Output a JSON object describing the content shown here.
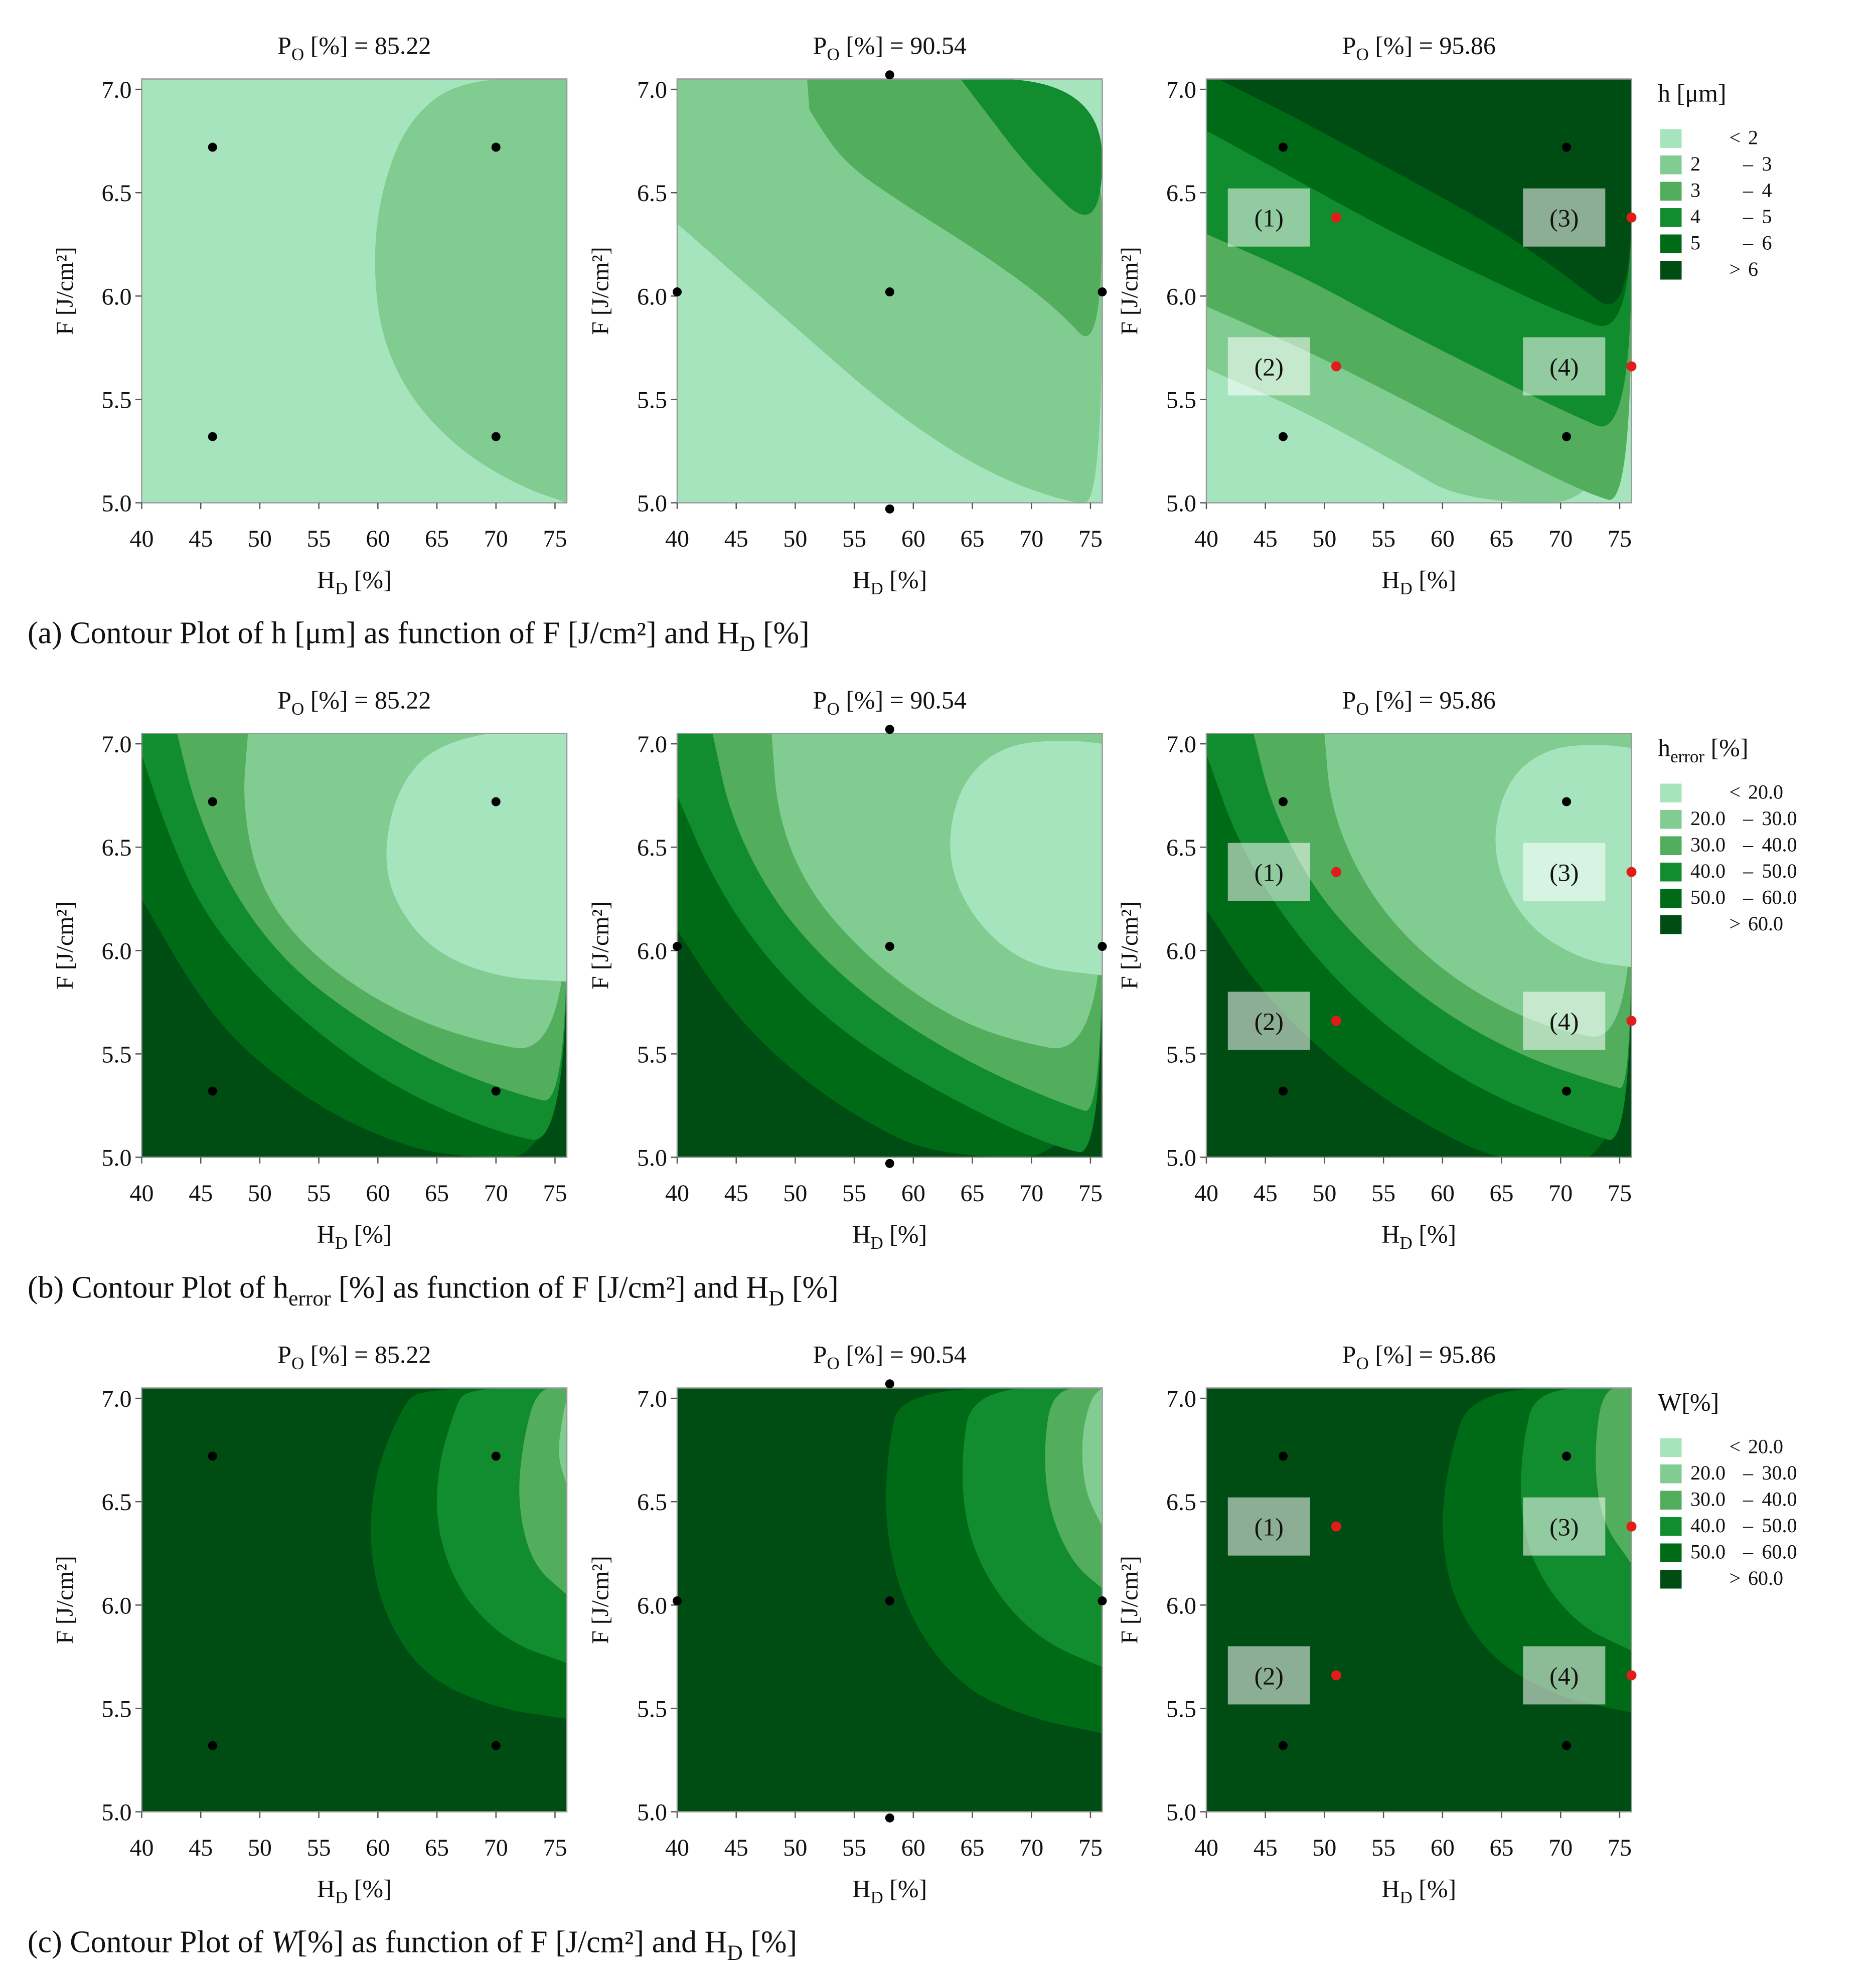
{
  "figure": {
    "colors": {
      "c1": "#a6e4bd",
      "c2": "#80cc91",
      "c3": "#52ad5d",
      "c4": "#118d2f",
      "c5": "#006b17",
      "c6": "#004d13",
      "design_point": "#000000",
      "optimum_point": "#e41b1b",
      "box_fill": "#ffffff"
    },
    "rows": [
      {
        "caption": {
          "prefix": "(a) Contour Plot of h [μm] as function of  F [J/cm²] and H",
          "sub": "D",
          "suffix": " [%]"
        },
        "legend": {
          "title": "h [μm]",
          "title_sub": "",
          "title_rest": "",
          "entries": [
            {
              "op": "<",
              "lo": "",
              "hi": "2"
            },
            {
              "op": "",
              "lo": "2",
              "hi": "3"
            },
            {
              "op": "",
              "lo": "3",
              "hi": "4"
            },
            {
              "op": "",
              "lo": "4",
              "hi": "5"
            },
            {
              "op": "",
              "lo": "5",
              "hi": "6"
            },
            {
              "op": ">",
              "lo": "",
              "hi": "6"
            }
          ]
        },
        "panels": [
          {
            "title": "P",
            "title_sub": "O",
            "title_rest": " [%] = 85.22"
          },
          {
            "title": "P",
            "title_sub": "O",
            "title_rest": " [%] = 90.54"
          },
          {
            "title": "P",
            "title_sub": "O",
            "title_rest": " [%] = 95.86"
          }
        ]
      },
      {
        "caption": {
          "prefix": "(b) Contour Plot of h",
          "sub": "error",
          "suffix": " [%] as function of  F [J/cm²] and H",
          "sub2": "D",
          "suffix2": " [%]"
        },
        "legend": {
          "title": "h",
          "title_sub": "error",
          "title_rest": " [%]",
          "entries": [
            {
              "op": "<",
              "lo": "",
              "hi": "20.0"
            },
            {
              "op": "",
              "lo": "20.0",
              "hi": "30.0"
            },
            {
              "op": "",
              "lo": "30.0",
              "hi": "40.0"
            },
            {
              "op": "",
              "lo": "40.0",
              "hi": "50.0"
            },
            {
              "op": "",
              "lo": "50.0",
              "hi": "60.0"
            },
            {
              "op": ">",
              "lo": "",
              "hi": "60.0"
            }
          ]
        },
        "panels": [
          {
            "title": "P",
            "title_sub": "O",
            "title_rest": " [%] = 85.22"
          },
          {
            "title": "P",
            "title_sub": "O",
            "title_rest": " [%] = 90.54"
          },
          {
            "title": "P",
            "title_sub": "O",
            "title_rest": " [%] = 95.86"
          }
        ]
      },
      {
        "caption": {
          "prefix": "(c) Contour Plot of ",
          "italic": "W",
          "suffix": "[%] as function of  F [J/cm²] and H",
          "sub": "D",
          "suffix2": " [%]"
        },
        "legend": {
          "title": "W[%]",
          "title_sub": "",
          "title_rest": "",
          "entries": [
            {
              "op": "<",
              "lo": "",
              "hi": "20.0"
            },
            {
              "op": "",
              "lo": "20.0",
              "hi": "30.0"
            },
            {
              "op": "",
              "lo": "30.0",
              "hi": "40.0"
            },
            {
              "op": "",
              "lo": "40.0",
              "hi": "50.0"
            },
            {
              "op": "",
              "lo": "50.0",
              "hi": "60.0"
            },
            {
              "op": ">",
              "lo": "",
              "hi": "60.0"
            }
          ]
        },
        "panels": [
          {
            "title": "P",
            "title_sub": "O",
            "title_rest": " [%] = 85.22"
          },
          {
            "title": "P",
            "title_sub": "O",
            "title_rest": " [%] = 90.54"
          },
          {
            "title": "P",
            "title_sub": "O",
            "title_rest": " [%] = 95.86"
          }
        ]
      }
    ],
    "axes": {
      "xlabel": "H",
      "xlabel_sub": "D",
      "xlabel_rest": " [%]",
      "ylabel": "F [J/cm²]",
      "xticks": [
        "40",
        "45",
        "50",
        "55",
        "60",
        "65",
        "70",
        "75"
      ],
      "yticks": [
        "5.0",
        "5.5",
        "6.0",
        "6.5",
        "7.0"
      ]
    },
    "annotation_labels": [
      "(1)",
      "(2)",
      "(3)",
      "(4)"
    ]
  },
  "chart_data": [
    {
      "type": "contour",
      "title": "Contour Plot of h [μm] as function of F [J/cm²] and H_D [%]",
      "xlabel": "H_D [%]",
      "ylabel": "F [J/cm²]",
      "xlim": [
        40,
        76
      ],
      "ylim": [
        5.0,
        7.05
      ],
      "levels": [
        "< 2",
        "2 - 3",
        "3 - 4",
        "4 - 5",
        "5 - 6",
        "> 6"
      ],
      "panels": [
        {
          "P_O": 85.22,
          "design_points": [
            [
              46,
              6.72
            ],
            [
              70,
              6.72
            ],
            [
              46,
              5.32
            ],
            [
              70,
              5.32
            ]
          ]
        },
        {
          "P_O": 90.54,
          "design_points": [
            [
              58,
              7.07
            ],
            [
              40,
              6.02
            ],
            [
              58,
              6.02
            ],
            [
              76,
              6.02
            ],
            [
              58,
              4.97
            ]
          ]
        },
        {
          "P_O": 95.86,
          "design_points": [
            [
              46.5,
              6.72
            ],
            [
              70.5,
              6.72
            ],
            [
              46.5,
              5.32
            ],
            [
              70.5,
              5.32
            ]
          ],
          "optimum_points": [
            {
              "label": "(1)",
              "x": 51,
              "y": 6.38
            },
            {
              "label": "(2)",
              "x": 51,
              "y": 5.66
            },
            {
              "label": "(3)",
              "x": 76,
              "y": 6.38
            },
            {
              "label": "(4)",
              "x": 76,
              "y": 5.66
            }
          ]
        }
      ]
    },
    {
      "type": "contour",
      "title": "Contour Plot of h_error [%] as function of F [J/cm²] and H_D [%]",
      "xlabel": "H_D [%]",
      "ylabel": "F [J/cm²]",
      "xlim": [
        40,
        76
      ],
      "ylim": [
        5.0,
        7.05
      ],
      "levels": [
        "< 20.0",
        "20.0 - 30.0",
        "30.0 - 40.0",
        "40.0 - 50.0",
        "50.0 - 60.0",
        "> 60.0"
      ],
      "panels": [
        {
          "P_O": 85.22,
          "design_points": [
            [
              46,
              6.72
            ],
            [
              70,
              6.72
            ],
            [
              46,
              5.32
            ],
            [
              70,
              5.32
            ]
          ]
        },
        {
          "P_O": 90.54,
          "design_points": [
            [
              58,
              7.07
            ],
            [
              40,
              6.02
            ],
            [
              58,
              6.02
            ],
            [
              76,
              6.02
            ],
            [
              58,
              4.97
            ]
          ]
        },
        {
          "P_O": 95.86,
          "design_points": [
            [
              46.5,
              6.72
            ],
            [
              70.5,
              6.72
            ],
            [
              46.5,
              5.32
            ],
            [
              70.5,
              5.32
            ]
          ],
          "optimum_points": [
            {
              "label": "(1)",
              "x": 51,
              "y": 6.38
            },
            {
              "label": "(2)",
              "x": 51,
              "y": 5.66
            },
            {
              "label": "(3)",
              "x": 76,
              "y": 6.38
            },
            {
              "label": "(4)",
              "x": 76,
              "y": 5.66
            }
          ]
        }
      ]
    },
    {
      "type": "contour",
      "title": "Contour Plot of W [%] as function of F [J/cm²] and H_D [%]",
      "xlabel": "H_D [%]",
      "ylabel": "F [J/cm²]",
      "xlim": [
        40,
        76
      ],
      "ylim": [
        5.0,
        7.05
      ],
      "levels": [
        "< 20.0",
        "20.0 - 30.0",
        "30.0 - 40.0",
        "40.0 - 50.0",
        "50.0 - 60.0",
        "> 60.0"
      ],
      "panels": [
        {
          "P_O": 85.22,
          "design_points": [
            [
              46,
              6.72
            ],
            [
              70,
              6.72
            ],
            [
              46,
              5.32
            ],
            [
              70,
              5.32
            ]
          ]
        },
        {
          "P_O": 90.54,
          "design_points": [
            [
              58,
              7.07
            ],
            [
              40,
              6.02
            ],
            [
              58,
              6.02
            ],
            [
              76,
              6.02
            ],
            [
              58,
              4.97
            ]
          ]
        },
        {
          "P_O": 95.86,
          "design_points": [
            [
              46.5,
              6.72
            ],
            [
              70.5,
              6.72
            ],
            [
              46.5,
              5.32
            ],
            [
              70.5,
              5.32
            ]
          ],
          "optimum_points": [
            {
              "label": "(1)",
              "x": 51,
              "y": 6.38
            },
            {
              "label": "(2)",
              "x": 51,
              "y": 5.66
            },
            {
              "label": "(3)",
              "x": 76,
              "y": 6.38
            },
            {
              "label": "(4)",
              "x": 76,
              "y": 5.66
            }
          ]
        }
      ]
    }
  ]
}
